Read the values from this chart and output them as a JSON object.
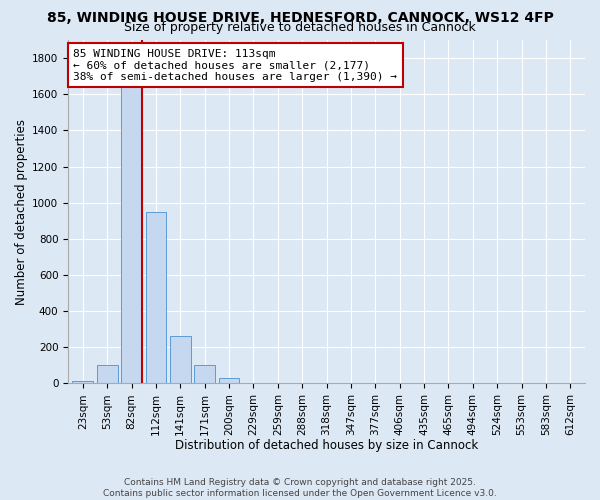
{
  "title": "85, WINDING HOUSE DRIVE, HEDNESFORD, CANNOCK, WS12 4FP",
  "subtitle": "Size of property relative to detached houses in Cannock",
  "xlabel": "Distribution of detached houses by size in Cannock",
  "ylabel": "Number of detached properties",
  "annotation_title": "85 WINDING HOUSE DRIVE: 113sqm",
  "annotation_line1": "← 60% of detached houses are smaller (2,177)",
  "annotation_line2": "38% of semi-detached houses are larger (1,390) →",
  "footer1": "Contains HM Land Registry data © Crown copyright and database right 2025.",
  "footer2": "Contains public sector information licensed under the Open Government Licence v3.0.",
  "categories": [
    "23sqm",
    "53sqm",
    "82sqm",
    "112sqm",
    "141sqm",
    "171sqm",
    "200sqm",
    "229sqm",
    "259sqm",
    "288sqm",
    "318sqm",
    "347sqm",
    "377sqm",
    "406sqm",
    "435sqm",
    "465sqm",
    "494sqm",
    "524sqm",
    "553sqm",
    "583sqm",
    "612sqm"
  ],
  "values": [
    15,
    100,
    1700,
    950,
    260,
    100,
    30,
    0,
    0,
    0,
    0,
    0,
    0,
    0,
    0,
    0,
    0,
    0,
    0,
    0,
    0
  ],
  "red_line_index": 2,
  "bar_color": "#c5d8f0",
  "bar_edge_color": "#5b9bd5",
  "background_color": "#dde8f5",
  "grid_color": "#ffffff",
  "annotation_box_edge": "#c00000",
  "red_line_color": "#c00000",
  "ylim": [
    0,
    1900
  ],
  "yticks": [
    0,
    200,
    400,
    600,
    800,
    1000,
    1200,
    1400,
    1600,
    1800
  ],
  "title_fontsize": 10,
  "subtitle_fontsize": 9,
  "axis_label_fontsize": 8.5,
  "tick_fontsize": 7.5,
  "annotation_fontsize": 8,
  "footer_fontsize": 6.5
}
